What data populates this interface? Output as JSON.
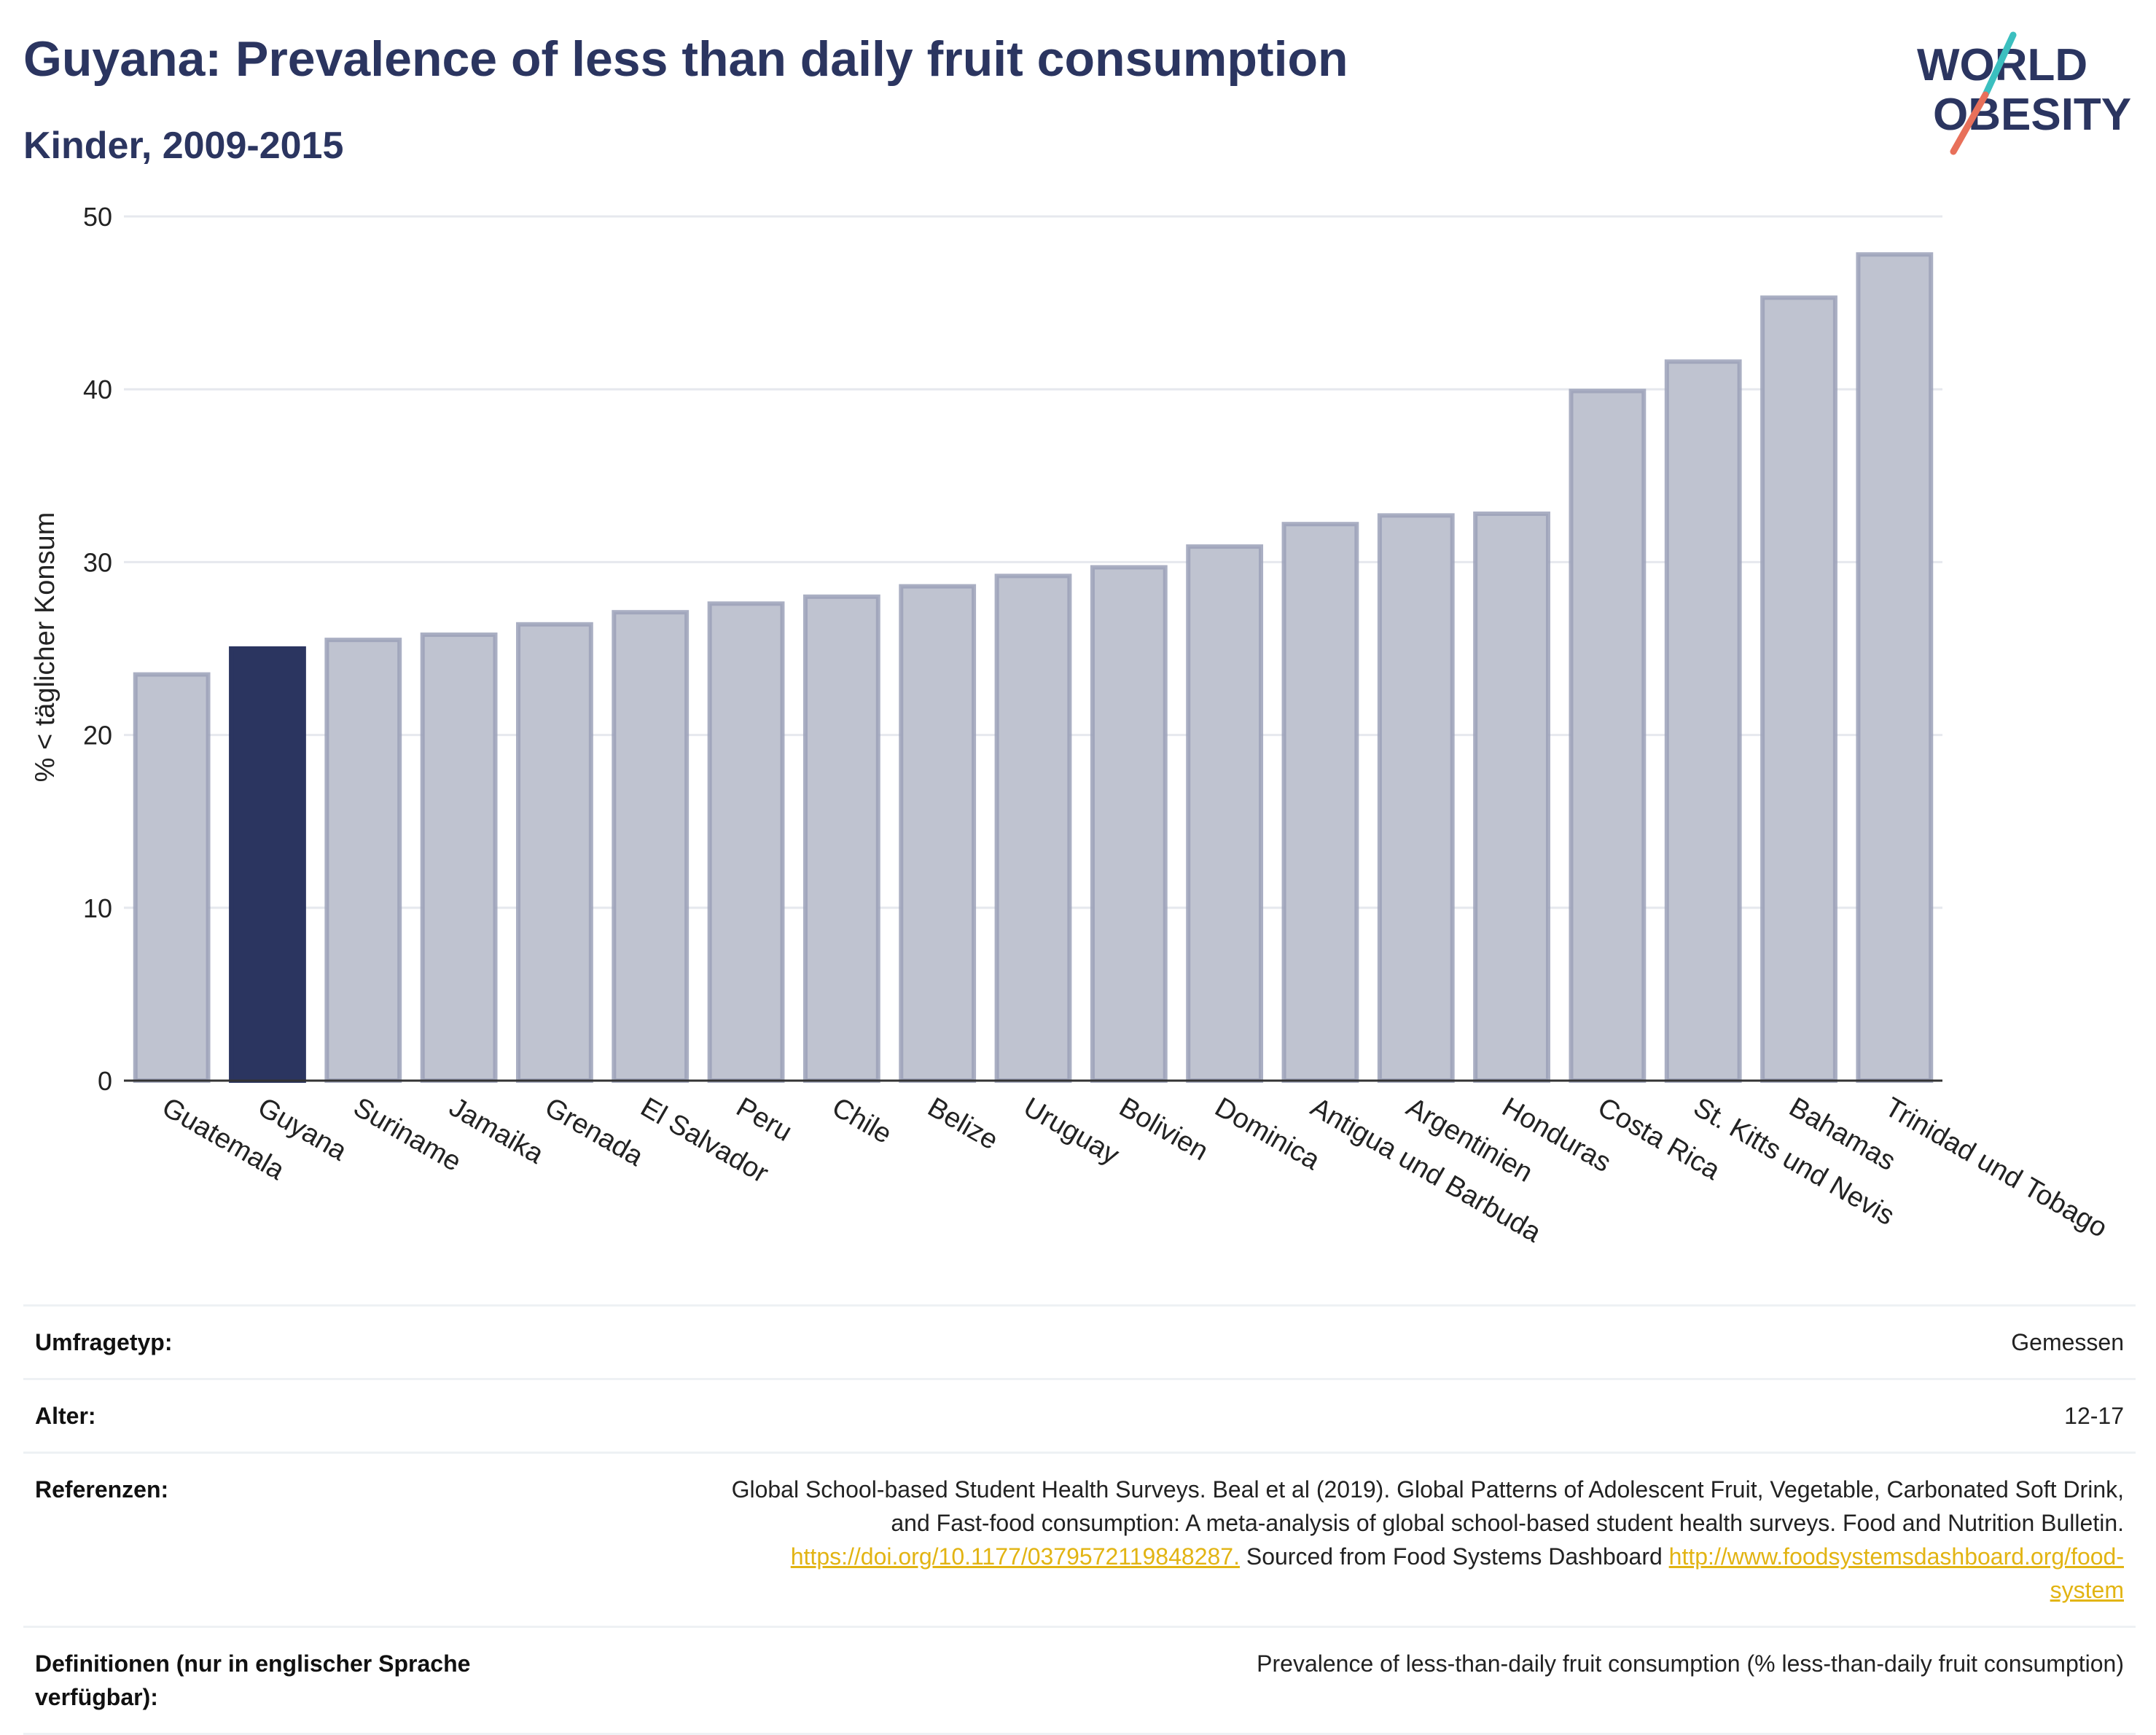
{
  "header": {
    "title": "Guyana: Prevalence of less than daily fruit consumption",
    "subtitle": "Kinder, 2009-2015"
  },
  "logo": {
    "line1": "WORLD",
    "line2": "OBESITY",
    "accent_teal": "#3bbfbf",
    "accent_coral": "#e8705a",
    "text_color": "#2b3560"
  },
  "chart_data": {
    "type": "bar",
    "title": "",
    "xlabel": "",
    "ylabel": "% < täglicher Konsum",
    "ylim": [
      0,
      50
    ],
    "yticks": [
      0,
      10,
      20,
      30,
      40,
      50
    ],
    "grid": true,
    "highlight": "Guyana",
    "colors": {
      "default": "#bfc3d0",
      "default_edge": "#9ba1b8",
      "highlight": "#2b3560",
      "grid": "#e6e8ee",
      "axis": "#333333"
    },
    "categories": [
      "Guatemala",
      "Guyana",
      "Suriname",
      "Jamaika",
      "Grenada",
      "El Salvador",
      "Peru",
      "Chile",
      "Belize",
      "Uruguay",
      "Bolivien",
      "Dominica",
      "Antigua und Barbuda",
      "Argentinien",
      "Honduras",
      "Costa Rica",
      "St. Kitts und Nevis",
      "Bahamas",
      "Trinidad und Tobago"
    ],
    "values": [
      23.5,
      25.0,
      25.5,
      25.8,
      26.4,
      27.1,
      27.6,
      28.0,
      28.6,
      29.2,
      29.7,
      30.9,
      32.2,
      32.7,
      32.8,
      39.9,
      41.6,
      45.3,
      47.8
    ]
  },
  "info": {
    "survey_label": "Umfragetyp:",
    "survey_value": "Gemessen",
    "age_label": "Alter:",
    "age_value": "12-17",
    "ref_label": "Referenzen:",
    "ref_text_1": "Global School-based Student Health Surveys. Beal et al (2019). Global Patterns of Adolescent Fruit, Vegetable, Carbonated Soft Drink,",
    "ref_text_2": "and Fast-food consumption: A meta-analysis of global school-based student health surveys. Food and Nutrition Bulletin.",
    "ref_link_1": "https://doi.org/10.1177/0379572119848287.",
    "ref_text_3": " Sourced from Food Systems Dashboard ",
    "ref_link_2a": "http://www.foodsystemsdashboard.org/food-",
    "ref_link_2b": "system",
    "def_label": "Definitionen (nur in englischer Sprache verfügbar):",
    "def_value": "Prevalence of less-than-daily fruit consumption (% less-than-daily fruit consumption)"
  }
}
